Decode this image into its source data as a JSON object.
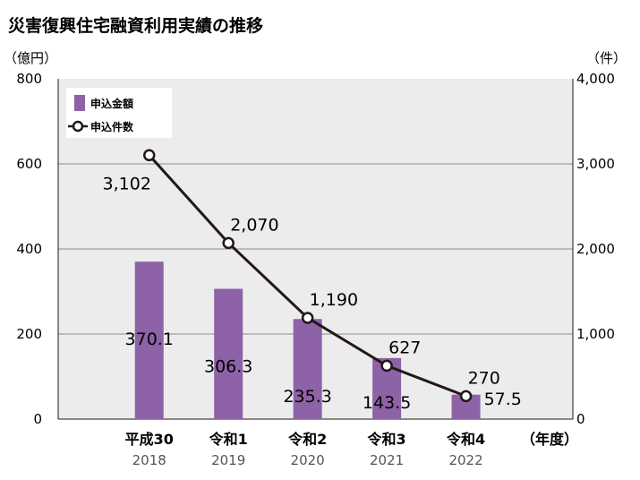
{
  "chart_data": {
    "type": "bar",
    "title": "災害復興住宅融資利用実績の推移",
    "y_unit_left": "（億円）",
    "y_unit_right": "（件）",
    "x_unit": "（年度）",
    "categories": [
      "平成30",
      "令和1",
      "令和2",
      "令和3",
      "令和4"
    ],
    "years": [
      "2018",
      "2019",
      "2020",
      "2021",
      "2022"
    ],
    "ylim_left": [
      0,
      800
    ],
    "ylim_right": [
      0,
      4000
    ],
    "yticks_left": [
      "0",
      "200",
      "400",
      "600",
      "800"
    ],
    "yticks_right": [
      "0",
      "1,000",
      "2,000",
      "3,000",
      "4,000"
    ],
    "grid": true,
    "legend_position": "top-left",
    "series": [
      {
        "name": "申込金額",
        "type": "bar",
        "axis": "left",
        "color": "#8d62a6",
        "values": [
          370.1,
          306.3,
          235.3,
          143.5,
          57.5
        ],
        "labels": [
          "370.1",
          "306.3",
          "235.3",
          "143.5",
          "57.5"
        ]
      },
      {
        "name": "申込件数",
        "type": "line",
        "axis": "right",
        "color": "#231815",
        "values": [
          3102,
          2070,
          1190,
          627,
          270
        ],
        "labels": [
          "3,102",
          "2,070",
          "1,190",
          "627",
          "270"
        ]
      }
    ]
  }
}
